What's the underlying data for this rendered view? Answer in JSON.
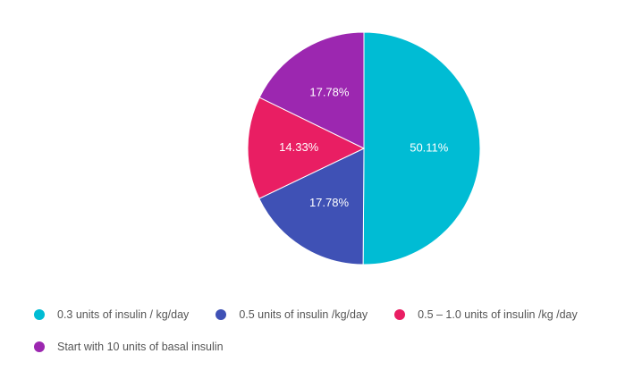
{
  "chart_data": {
    "type": "pie",
    "title": "",
    "slices": [
      {
        "label": "0.3 units of insulin / kg/day",
        "value": 50.11,
        "display": "50.11%",
        "color": "#00BCD4"
      },
      {
        "label": "0.5 units of insulin /kg/day",
        "value": 17.78,
        "display": "17.78%",
        "color": "#3F51B5"
      },
      {
        "label": "0.5 – 1.0 units of insulin /kg /day",
        "value": 14.33,
        "display": "14.33%",
        "color": "#E91E63"
      },
      {
        "label": "Start with 10 units of basal insulin",
        "value": 17.78,
        "display": "17.78%",
        "color": "#9C27B0"
      }
    ],
    "start_angle_deg": 0,
    "direction": "clockwise",
    "legend_position": "bottom"
  }
}
